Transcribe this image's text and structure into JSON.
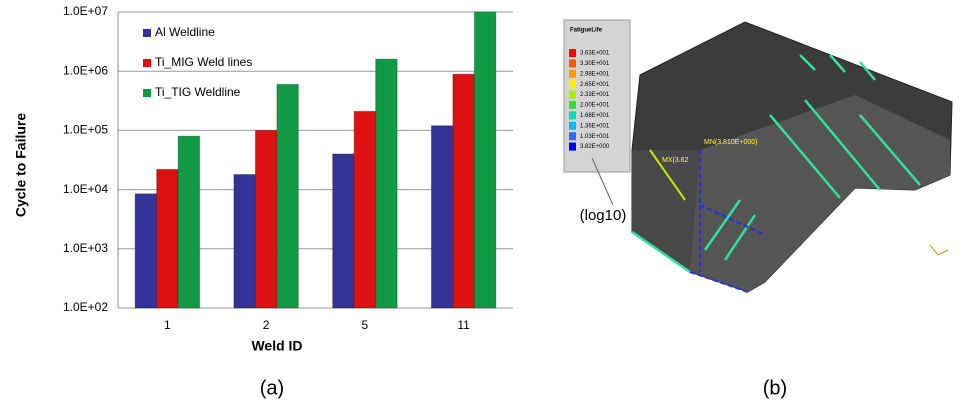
{
  "chart_data": {
    "type": "bar",
    "y_label": "Cycle to Failure",
    "x_label": "Weld ID",
    "categories": [
      "1",
      "2",
      "5",
      "11"
    ],
    "series": [
      {
        "name": "Al Weldline",
        "color": "#333399",
        "values": [
          8500,
          18000,
          40000,
          120000
        ]
      },
      {
        "name": "Ti_MIG Weld lines",
        "color": "#dd1111",
        "values": [
          22000,
          100000,
          210000,
          890000
        ]
      },
      {
        "name": "Ti_TIG Weldline",
        "color": "#119944",
        "values": [
          80000,
          600000,
          1600000,
          10000000
        ]
      }
    ],
    "log_scale": true,
    "grid": true,
    "ylim": [
      100,
      10000000
    ],
    "yticks": [
      {
        "value": 100,
        "label": "1.0E+02"
      },
      {
        "value": 1000,
        "label": "1.0E+03"
      },
      {
        "value": 10000,
        "label": "1.0E+04"
      },
      {
        "value": 100000,
        "label": "1.0E+05"
      },
      {
        "value": 1000000,
        "label": "1.0E+06"
      },
      {
        "value": 10000000,
        "label": "1.0E+07"
      }
    ],
    "panel_label": "(a)"
  },
  "fe_model": {
    "panel_label": "(b)",
    "legend_title": "FatigueLife",
    "legend_labels": [
      "3.63E+001",
      "3.30E+001",
      "2.98E+001",
      "2.65E+001",
      "2.33E+001",
      "2.00E+001",
      "1.68E+001",
      "1.36E+001",
      "1.03E+001",
      "3.82E+000"
    ],
    "legend_colors": [
      "#ff0000",
      "#ff5a00",
      "#ff9900",
      "#ffee00",
      "#aaee00",
      "#33dd33",
      "#00ddbb",
      "#00bbff",
      "#3366ff",
      "#0000ee"
    ],
    "scale_note": "(log10)",
    "max_label": "MX(3.62",
    "min_label": "MN(3.810E+000)"
  }
}
